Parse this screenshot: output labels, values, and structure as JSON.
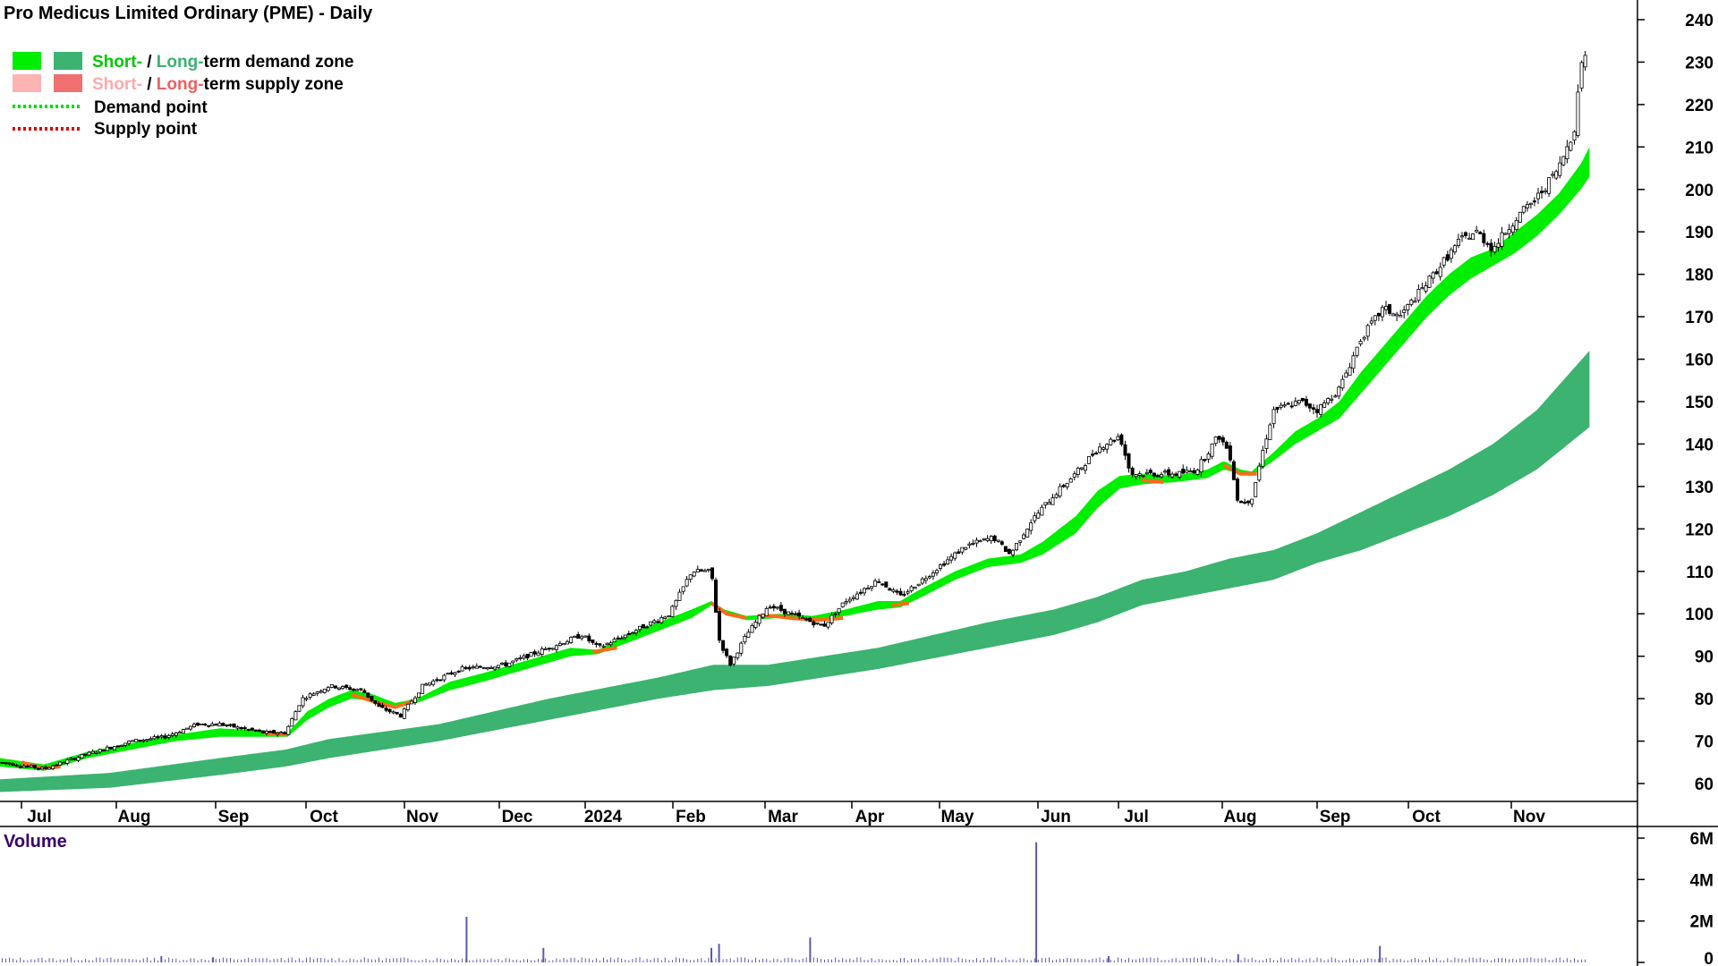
{
  "title": "Pro Medicus Limited Ordinary (PME) - Daily",
  "legend": {
    "demand_zone": {
      "short_label": "Short-",
      "sep": " / ",
      "long_label": "Long-",
      "rest": "term demand zone"
    },
    "supply_zone": {
      "short_label": "Short-",
      "sep": " / ",
      "long_label": "Long-",
      "rest": "term supply zone"
    },
    "demand_point": "Demand point",
    "supply_point": "Supply point"
  },
  "colors": {
    "short_demand": "#00ee00",
    "long_demand": "#3cb371",
    "short_supply": "#ffb3b3",
    "long_supply": "#f07070",
    "transition": "#ff6a1a",
    "demand_point": "#00dd00",
    "supply_point": "#dd0000",
    "volume_title": "#3a006f",
    "volume_bar": "#5a5ab4"
  },
  "chart_data": [
    {
      "type": "candlestick",
      "title": "Pro Medicus Limited Ordinary (PME) - Daily",
      "x_ticks": [
        "Jul",
        "Aug",
        "Sep",
        "Oct",
        "Nov",
        "Dec",
        "2024",
        "Feb",
        "Mar",
        "Apr",
        "May",
        "Jun",
        "Jul",
        "Aug",
        "Sep",
        "Oct",
        "Nov"
      ],
      "y_ticks": [
        "60",
        "70",
        "80",
        "90",
        "100",
        "110",
        "120",
        "130",
        "140",
        "150",
        "160",
        "170",
        "180",
        "190",
        "200",
        "210",
        "220",
        "230",
        "240"
      ],
      "ylim": [
        55,
        244
      ],
      "price_path": [
        [
          0,
          65
        ],
        [
          40,
          63.5
        ],
        [
          80,
          67
        ],
        [
          120,
          70
        ],
        [
          150,
          71
        ],
        [
          180,
          74
        ],
        [
          200,
          74
        ],
        [
          240,
          72
        ],
        [
          260,
          72
        ],
        [
          275,
          80
        ],
        [
          300,
          83
        ],
        [
          330,
          82
        ],
        [
          345,
          78
        ],
        [
          365,
          76
        ],
        [
          385,
          83
        ],
        [
          420,
          87
        ],
        [
          460,
          88
        ],
        [
          500,
          92
        ],
        [
          530,
          95
        ],
        [
          545,
          92
        ],
        [
          570,
          95
        ],
        [
          610,
          100
        ],
        [
          630,
          110
        ],
        [
          648,
          110
        ],
        [
          655,
          94
        ],
        [
          665,
          88
        ],
        [
          680,
          95
        ],
        [
          700,
          102
        ],
        [
          720,
          100
        ],
        [
          750,
          97
        ],
        [
          770,
          103
        ],
        [
          800,
          108
        ],
        [
          820,
          104
        ],
        [
          850,
          110
        ],
        [
          880,
          116
        ],
        [
          905,
          118
        ],
        [
          920,
          114
        ],
        [
          940,
          122
        ],
        [
          960,
          128
        ],
        [
          980,
          133
        ],
        [
          1000,
          139
        ],
        [
          1020,
          142
        ],
        [
          1030,
          133
        ],
        [
          1050,
          133
        ],
        [
          1075,
          133
        ],
        [
          1090,
          134
        ],
        [
          1110,
          142
        ],
        [
          1120,
          138
        ],
        [
          1128,
          126
        ],
        [
          1140,
          127
        ],
        [
          1150,
          138
        ],
        [
          1160,
          148
        ],
        [
          1185,
          150
        ],
        [
          1200,
          148
        ],
        [
          1220,
          153
        ],
        [
          1240,
          165
        ],
        [
          1260,
          172
        ],
        [
          1275,
          170
        ],
        [
          1300,
          178
        ],
        [
          1330,
          188
        ],
        [
          1345,
          190
        ],
        [
          1360,
          186
        ],
        [
          1380,
          193
        ],
        [
          1400,
          198
        ],
        [
          1420,
          205
        ],
        [
          1435,
          215
        ],
        [
          1440,
          230
        ],
        [
          1447,
          233
        ]
      ],
      "short_term_demand_zone": [
        [
          0,
          64,
          66
        ],
        [
          40,
          63,
          64.5
        ],
        [
          80,
          66,
          67.5
        ],
        [
          120,
          68,
          69.5
        ],
        [
          160,
          70,
          71.5
        ],
        [
          200,
          71,
          73
        ],
        [
          240,
          71,
          72.5
        ],
        [
          262,
          71,
          72
        ],
        [
          280,
          75,
          77
        ],
        [
          300,
          78,
          80
        ],
        [
          320,
          80,
          82
        ],
        [
          340,
          79.5,
          81
        ],
        [
          360,
          78,
          79
        ],
        [
          380,
          79,
          80
        ],
        [
          410,
          82,
          84
        ],
        [
          440,
          84,
          86
        ],
        [
          480,
          87,
          89
        ],
        [
          520,
          90,
          92
        ],
        [
          545,
          90.5,
          91.5
        ],
        [
          570,
          93,
          95
        ],
        [
          600,
          96,
          98
        ],
        [
          630,
          99,
          101
        ],
        [
          648,
          102,
          103
        ],
        [
          660,
          100,
          101
        ],
        [
          680,
          98.5,
          99.5
        ],
        [
          710,
          99,
          100
        ],
        [
          740,
          98.5,
          99.5
        ],
        [
          770,
          99.5,
          101
        ],
        [
          800,
          101,
          103
        ],
        [
          820,
          101.5,
          103
        ],
        [
          840,
          104,
          106
        ],
        [
          870,
          108,
          110
        ],
        [
          900,
          111,
          113
        ],
        [
          930,
          112,
          114
        ],
        [
          950,
          114,
          117
        ],
        [
          980,
          119,
          123
        ],
        [
          1000,
          125,
          129
        ],
        [
          1020,
          129.5,
          132.5
        ],
        [
          1040,
          130.5,
          133
        ],
        [
          1070,
          131,
          132.5
        ],
        [
          1100,
          132,
          134
        ],
        [
          1115,
          134,
          136
        ],
        [
          1130,
          133,
          134
        ],
        [
          1140,
          132.5,
          133.5
        ],
        [
          1160,
          136,
          138
        ],
        [
          1180,
          140,
          143
        ],
        [
          1200,
          143,
          146
        ],
        [
          1220,
          146,
          150
        ],
        [
          1240,
          152,
          157
        ],
        [
          1260,
          158,
          163
        ],
        [
          1280,
          164,
          169
        ],
        [
          1300,
          170,
          175
        ],
        [
          1320,
          175,
          180
        ],
        [
          1340,
          179,
          184
        ],
        [
          1360,
          182,
          186
        ],
        [
          1380,
          185,
          190
        ],
        [
          1400,
          189,
          194
        ],
        [
          1420,
          194,
          199
        ],
        [
          1440,
          200,
          206
        ],
        [
          1448,
          203,
          210
        ]
      ],
      "long_term_demand_zone": [
        [
          0,
          58,
          61
        ],
        [
          100,
          59,
          62.5
        ],
        [
          200,
          62,
          66
        ],
        [
          260,
          64,
          68
        ],
        [
          300,
          66,
          70.5
        ],
        [
          400,
          70,
          74
        ],
        [
          500,
          75,
          80
        ],
        [
          600,
          80,
          85
        ],
        [
          650,
          82,
          88
        ],
        [
          700,
          83,
          88
        ],
        [
          800,
          87,
          92
        ],
        [
          900,
          92,
          98
        ],
        [
          960,
          95,
          101
        ],
        [
          1000,
          98,
          104
        ],
        [
          1040,
          102,
          108
        ],
        [
          1080,
          104,
          110
        ],
        [
          1120,
          106,
          113
        ],
        [
          1160,
          108,
          115
        ],
        [
          1200,
          112,
          119
        ],
        [
          1240,
          115,
          124
        ],
        [
          1280,
          119,
          129
        ],
        [
          1320,
          123,
          134
        ],
        [
          1360,
          128,
          140
        ],
        [
          1400,
          134,
          148
        ],
        [
          1448,
          144,
          162
        ]
      ],
      "transition_segments": [
        [
          [
            20,
            65
          ],
          [
            40,
            63.5
          ],
          [
            55,
            64
          ]
        ],
        [
          [
            240,
            72
          ],
          [
            262,
            71.5
          ]
        ],
        [
          [
            320,
            81
          ],
          [
            345,
            79
          ],
          [
            360,
            78
          ],
          [
            378,
            79.5
          ]
        ],
        [
          [
            540,
            91
          ],
          [
            562,
            92
          ]
        ],
        [
          [
            648,
            102.5
          ],
          [
            662,
            100
          ],
          [
            680,
            99
          ]
        ],
        [
          [
            690,
            99.5
          ],
          [
            705,
            99.5
          ],
          [
            720,
            99
          ],
          [
            745,
            98.5
          ],
          [
            768,
            99
          ]
        ],
        [
          [
            812,
            102
          ],
          [
            828,
            102.5
          ]
        ],
        [
          [
            1040,
            131.5
          ],
          [
            1060,
            131
          ]
        ],
        [
          [
            1115,
            135
          ],
          [
            1130,
            133
          ],
          [
            1145,
            133
          ]
        ]
      ]
    },
    {
      "type": "bar",
      "title": "Volume",
      "y_ticks": [
        "0",
        "2M",
        "4M",
        "6M"
      ],
      "ylim": [
        0,
        6000000
      ],
      "spikes": [
        [
          425,
          2200000
        ],
        [
          495,
          700000
        ],
        [
          655,
          900000
        ],
        [
          648,
          700000
        ],
        [
          738,
          1200000
        ],
        [
          944,
          5800000
        ],
        [
          1257,
          800000
        ],
        [
          1128,
          400000
        ],
        [
          1010,
          300000
        ],
        [
          147,
          300000
        ],
        [
          194,
          250000
        ]
      ]
    }
  ]
}
